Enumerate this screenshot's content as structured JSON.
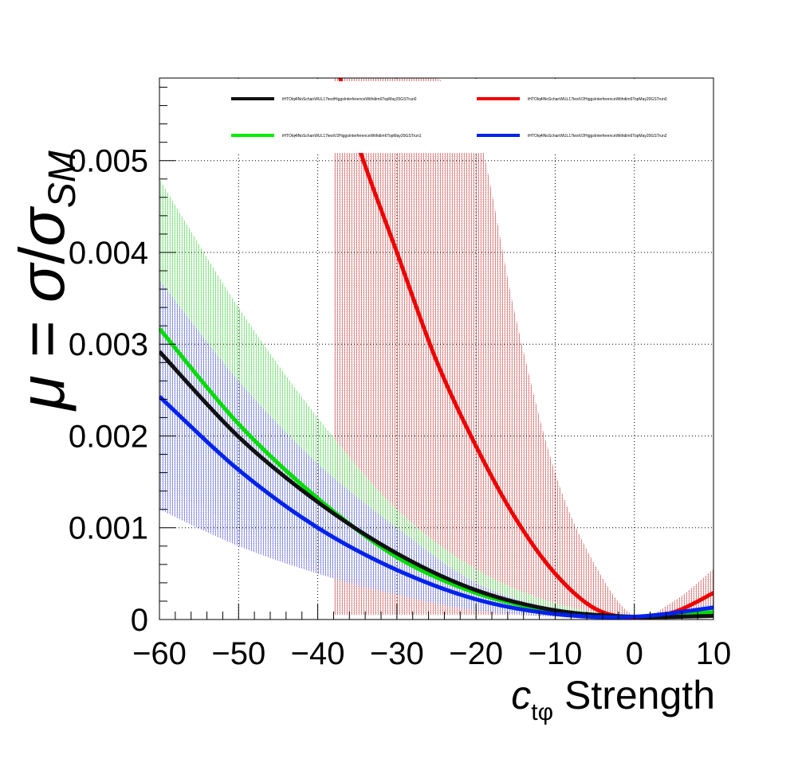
{
  "chart_data": {
    "type": "line",
    "xlabel": {
      "symbol": "c",
      "subscript": "tφ",
      "text": " Strength"
    },
    "ylabel": {
      "mu": "μ",
      "eq": " = ",
      "sigma": "σ",
      "slash": "/",
      "sigma2": "σ",
      "sub": "SM"
    },
    "xlim": [
      -60,
      10
    ],
    "ylim": [
      0,
      0.0059
    ],
    "xticks": [
      -60,
      -50,
      -40,
      -30,
      -20,
      -10,
      0,
      10
    ],
    "xtick_labels": [
      "−60",
      "−50",
      "−40",
      "−30",
      "−20",
      "−10",
      "0",
      "10"
    ],
    "yticks": [
      0,
      0.001,
      0.002,
      0.003,
      0.004,
      0.005
    ],
    "ytick_labels": [
      "0",
      "0.001",
      "0.002",
      "0.003",
      "0.004",
      "0.005"
    ],
    "grid": true,
    "legend_position": "top",
    "series": [
      {
        "name": "tHTOlq4lNoSchanWUL17testHiggsInterferenceWithdim6TopMay20GSTrun0",
        "color": "#111111",
        "x": [
          -60,
          -50,
          -40,
          -30,
          -20,
          -10,
          0,
          10
        ],
        "y": [
          0.00292,
          0.00199,
          0.00128,
          0.00072,
          0.00032,
          0.0001,
          3e-05,
          4e-05
        ]
      },
      {
        "name": "tHTOlq4lNoSchanWUL17testV2HiggsInterferenceWithdim6TopMay20GSTrun0",
        "color": "#ee0000",
        "x": [
          -38,
          -35,
          -30,
          -25,
          -20,
          -15,
          -10,
          -5,
          0,
          5,
          10
        ],
        "y": [
          0.0062,
          0.0052,
          0.004,
          0.00282,
          0.00189,
          0.0011,
          0.0005,
          0.00012,
          2e-05,
          8e-05,
          0.00029
        ],
        "band_lower": [
          5e-05,
          5e-05,
          5e-05,
          5e-05,
          5e-05,
          5e-05,
          3e-05,
          0.0,
          0.0,
          2e-05,
          3e-05
        ],
        "band_upper": [
          0.0059,
          0.0059,
          0.0059,
          0.0059,
          0.0054,
          0.0033,
          0.0016,
          0.0006,
          4e-05,
          0.0002,
          0.00055
        ]
      },
      {
        "name": "tHTOlq4lNoSchanWUL17testV2HiggsInterferenceWithdim6TopMay20GSTrun1",
        "color": "#00dd00",
        "x": [
          -60,
          -50,
          -40,
          -30,
          -20,
          -10,
          0,
          10
        ],
        "y": [
          0.00317,
          0.00213,
          0.00132,
          0.00068,
          0.00029,
          9e-05,
          3e-05,
          8e-05
        ],
        "band_lower": [
          0.0015,
          0.001,
          0.0006,
          0.0003,
          0.00012,
          4e-05,
          0.0,
          3e-05
        ],
        "band_upper": [
          0.0048,
          0.0034,
          0.0022,
          0.0012,
          0.00055,
          0.00018,
          4e-05,
          0.00012
        ]
      },
      {
        "name": "tHTOlq4lNoSchanWUL17testV2HiggsInterferenceWithdim6TopMay20GSTrun2",
        "color": "#0022ee",
        "x": [
          -60,
          -50,
          -40,
          -30,
          -20,
          -10,
          0,
          10
        ],
        "y": [
          0.00243,
          0.00163,
          0.001,
          0.00054,
          0.00022,
          6e-05,
          3e-05,
          0.00013
        ],
        "band_lower": [
          0.0012,
          0.0008,
          0.0005,
          0.00027,
          0.0001,
          3e-05,
          0.0,
          5e-05
        ],
        "band_upper": [
          0.0037,
          0.0026,
          0.0017,
          0.001,
          0.0004,
          0.00012,
          5e-05,
          0.00017
        ]
      }
    ]
  }
}
